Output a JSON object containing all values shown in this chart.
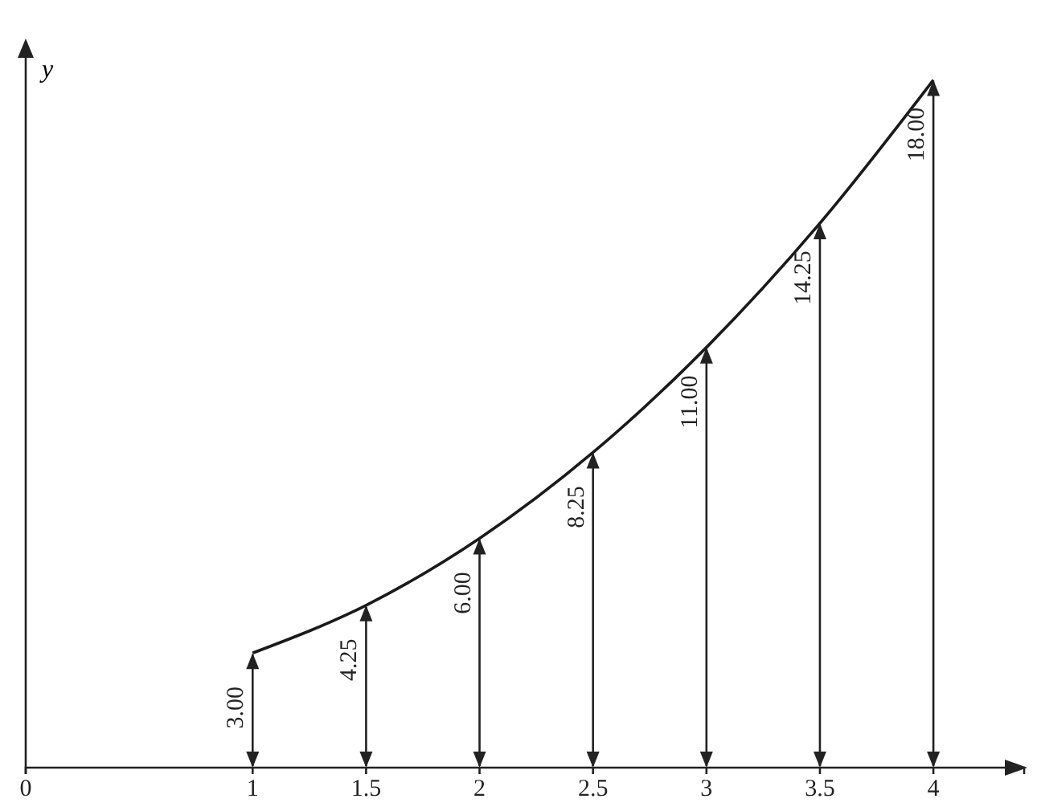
{
  "chart_data": {
    "type": "line",
    "ylabel": "y",
    "x": [
      1,
      1.5,
      2,
      2.5,
      3,
      3.5,
      4
    ],
    "series": [
      {
        "color": "#1a1a1a",
        "values": [
          3,
          4.25,
          6,
          8.25,
          11,
          14.25,
          18
        ],
        "value_labels": [
          "3.00",
          "4.25",
          "6.00",
          "8.25",
          "11.00",
          "14.25",
          "18.00"
        ]
      }
    ],
    "xlim": [
      0,
      4.4
    ],
    "xticks": [
      0,
      1,
      1.5,
      2,
      2.5,
      3,
      3.5,
      4
    ],
    "ylim": [
      0,
      19
    ],
    "tick_labels": "x",
    "marker": "none",
    "line_style": "solid"
  }
}
